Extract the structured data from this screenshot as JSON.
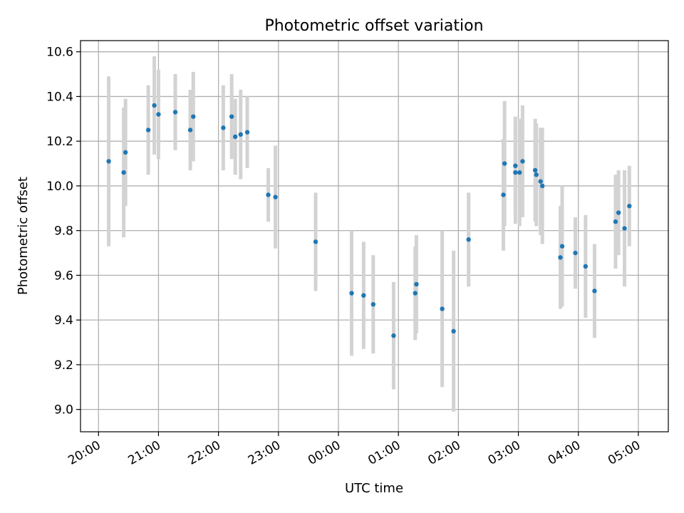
{
  "chart_data": {
    "type": "scatter",
    "title": "Photometric offset variation",
    "xlabel": "UTC time",
    "ylabel": "Photometric offset",
    "grid": true,
    "xlim": [
      -4.3,
      5.5
    ],
    "ylim": [
      8.9,
      10.65
    ],
    "xticks": [
      {
        "value": -4,
        "label": "20:00"
      },
      {
        "value": -3,
        "label": "21:00"
      },
      {
        "value": -2,
        "label": "22:00"
      },
      {
        "value": -1,
        "label": "23:00"
      },
      {
        "value": 0,
        "label": "00:00"
      },
      {
        "value": 1,
        "label": "01:00"
      },
      {
        "value": 2,
        "label": "02:00"
      },
      {
        "value": 3,
        "label": "03:00"
      },
      {
        "value": 4,
        "label": "04:00"
      },
      {
        "value": 5,
        "label": "05:00"
      }
    ],
    "yticks": [
      {
        "value": 9.0,
        "label": "9.0"
      },
      {
        "value": 9.2,
        "label": "9.2"
      },
      {
        "value": 9.4,
        "label": "9.4"
      },
      {
        "value": 9.6,
        "label": "9.6"
      },
      {
        "value": 9.8,
        "label": "9.8"
      },
      {
        "value": 10.0,
        "label": "10.0"
      },
      {
        "value": 10.2,
        "label": "10.2"
      },
      {
        "value": 10.4,
        "label": "10.4"
      },
      {
        "value": 10.6,
        "label": "10.6"
      }
    ],
    "x_units": "hours relative to 00:00 UTC",
    "series": [
      {
        "name": "Photometric offset",
        "color": "#1f77b4",
        "errorbar_color": "#d3d3d3",
        "points": [
          {
            "x": -3.83,
            "y": 10.11,
            "err": 0.38
          },
          {
            "x": -3.58,
            "y": 10.06,
            "err": 0.29
          },
          {
            "x": -3.55,
            "y": 10.15,
            "err": 0.24
          },
          {
            "x": -3.17,
            "y": 10.25,
            "err": 0.2
          },
          {
            "x": -3.07,
            "y": 10.36,
            "err": 0.22
          },
          {
            "x": -3.0,
            "y": 10.32,
            "err": 0.2
          },
          {
            "x": -2.72,
            "y": 10.33,
            "err": 0.17
          },
          {
            "x": -2.47,
            "y": 10.25,
            "err": 0.18
          },
          {
            "x": -2.42,
            "y": 10.31,
            "err": 0.2
          },
          {
            "x": -1.92,
            "y": 10.26,
            "err": 0.19
          },
          {
            "x": -1.78,
            "y": 10.31,
            "err": 0.19
          },
          {
            "x": -1.72,
            "y": 10.22,
            "err": 0.17
          },
          {
            "x": -1.63,
            "y": 10.23,
            "err": 0.2
          },
          {
            "x": -1.52,
            "y": 10.24,
            "err": 0.16
          },
          {
            "x": -1.17,
            "y": 9.96,
            "err": 0.12
          },
          {
            "x": -1.05,
            "y": 9.95,
            "err": 0.23
          },
          {
            "x": -0.38,
            "y": 9.75,
            "err": 0.22
          },
          {
            "x": 0.22,
            "y": 9.52,
            "err": 0.28
          },
          {
            "x": 0.42,
            "y": 9.51,
            "err": 0.24
          },
          {
            "x": 0.58,
            "y": 9.47,
            "err": 0.22
          },
          {
            "x": 0.92,
            "y": 9.33,
            "err": 0.24
          },
          {
            "x": 1.28,
            "y": 9.52,
            "err": 0.21
          },
          {
            "x": 1.3,
            "y": 9.56,
            "err": 0.22
          },
          {
            "x": 1.73,
            "y": 9.45,
            "err": 0.35
          },
          {
            "x": 1.92,
            "y": 9.35,
            "err": 0.36
          },
          {
            "x": 2.17,
            "y": 9.76,
            "err": 0.21
          },
          {
            "x": 2.75,
            "y": 9.96,
            "err": 0.25
          },
          {
            "x": 2.77,
            "y": 10.1,
            "err": 0.28
          },
          {
            "x": 2.95,
            "y": 10.06,
            "err": 0.23
          },
          {
            "x": 2.95,
            "y": 10.09,
            "err": 0.22
          },
          {
            "x": 3.02,
            "y": 10.06,
            "err": 0.24
          },
          {
            "x": 3.07,
            "y": 10.11,
            "err": 0.25
          },
          {
            "x": 3.28,
            "y": 10.07,
            "err": 0.23
          },
          {
            "x": 3.3,
            "y": 10.05,
            "err": 0.23
          },
          {
            "x": 3.37,
            "y": 10.02,
            "err": 0.24
          },
          {
            "x": 3.4,
            "y": 10.0,
            "err": 0.26
          },
          {
            "x": 3.7,
            "y": 9.68,
            "err": 0.23
          },
          {
            "x": 3.73,
            "y": 9.73,
            "err": 0.27
          },
          {
            "x": 3.95,
            "y": 9.7,
            "err": 0.16
          },
          {
            "x": 4.12,
            "y": 9.64,
            "err": 0.23
          },
          {
            "x": 4.27,
            "y": 9.53,
            "err": 0.21
          },
          {
            "x": 4.62,
            "y": 9.84,
            "err": 0.21
          },
          {
            "x": 4.67,
            "y": 9.88,
            "err": 0.19
          },
          {
            "x": 4.77,
            "y": 9.81,
            "err": 0.26
          },
          {
            "x": 4.85,
            "y": 9.91,
            "err": 0.18
          }
        ]
      }
    ]
  }
}
